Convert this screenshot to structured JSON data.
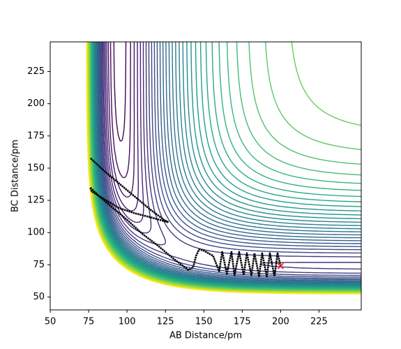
{
  "chart_data": {
    "type": "contour-trajectory",
    "x_label": "AB Distance/pm",
    "y_label": "BC Distance/pm",
    "xlim": [
      50,
      252.5
    ],
    "ylim": [
      40,
      248
    ],
    "xticks": [
      50,
      75,
      100,
      125,
      150,
      175,
      200,
      225
    ],
    "yticks": [
      50,
      75,
      100,
      125,
      150,
      175,
      200,
      225
    ],
    "trajectory": {
      "color": "#000000",
      "x": [
        200,
        198,
        196,
        193,
        191,
        188,
        186,
        183,
        181,
        178,
        176,
        173,
        170,
        168,
        165,
        162,
        160,
        156,
        150,
        147,
        145,
        143,
        140,
        130,
        120,
        110,
        100,
        90,
        82,
        76,
        77,
        85,
        95,
        105,
        115,
        127,
        124,
        115,
        105,
        95,
        85,
        76
      ],
      "values": [
        74,
        84,
        66,
        84,
        66,
        84,
        66,
        84,
        67,
        84,
        67,
        85,
        67,
        85,
        68,
        85,
        70,
        82,
        86,
        87,
        82,
        73,
        71,
        80,
        90,
        99,
        110,
        120,
        128,
        135,
        132,
        126,
        119,
        115,
        112,
        108,
        110,
        118,
        128,
        138,
        148,
        158
      ]
    },
    "start": {
      "x": 200,
      "y": 74,
      "color": "#ff0000"
    }
  }
}
